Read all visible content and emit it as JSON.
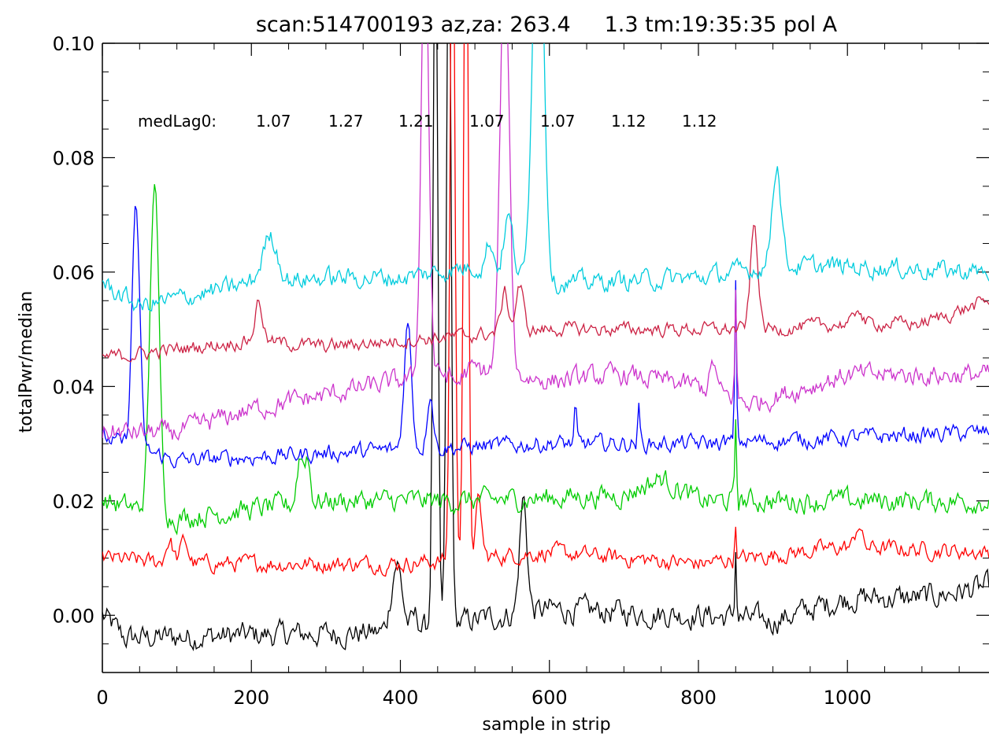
{
  "chart_data": {
    "type": "line",
    "title": "scan:514700193 az,za: 263.4     1.3 tm:19:35:35 pol A",
    "xlabel": "sample in strip",
    "ylabel": "totalPwr/median",
    "xlim": [
      0,
      1190
    ],
    "ylim": [
      -0.01,
      0.1
    ],
    "xticks": [
      0,
      200,
      400,
      600,
      800,
      1000
    ],
    "xtick_labels": [
      "0",
      "200",
      "400",
      "600",
      "800",
      "1000"
    ],
    "yticks": [
      0.0,
      0.02,
      0.04,
      0.06,
      0.08,
      0.1
    ],
    "ytick_labels": [
      "0.00",
      "0.02",
      "0.04",
      "0.06",
      "0.08",
      "0.10"
    ],
    "annotation": {
      "label": "medLag0:",
      "values": [
        "1.07",
        "1.27",
        "1.21",
        "1.07",
        "1.07",
        "1.12",
        "1.12"
      ]
    },
    "grid": false,
    "series": [
      {
        "color": "#000000",
        "offset": 0.0,
        "base": [
          [
            0,
            0.0
          ],
          [
            30,
            -0.004
          ],
          [
            380,
            -0.003
          ],
          [
            600,
            0.001
          ],
          [
            800,
            0.0
          ],
          [
            900,
            -0.001
          ],
          [
            1000,
            0.003
          ],
          [
            1100,
            0.003
          ],
          [
            1190,
            0.005
          ]
        ],
        "noise": 0.0018,
        "features": [
          [
            395,
            0.012,
            7
          ],
          [
            420,
            0.002,
            4
          ],
          [
            447,
            0.13,
            3
          ],
          [
            465,
            0.13,
            3
          ],
          [
            565,
            0.02,
            5
          ],
          [
            850,
            0.012,
            1.2
          ]
        ]
      },
      {
        "color": "#ff0000",
        "offset": 0.01,
        "base": [
          [
            0,
            0.01
          ],
          [
            100,
            0.009
          ],
          [
            400,
            0.009
          ],
          [
            600,
            0.011
          ],
          [
            800,
            0.009
          ],
          [
            1000,
            0.012
          ],
          [
            1190,
            0.011
          ]
        ],
        "noise": 0.0012,
        "features": [
          [
            90,
            0.004,
            5
          ],
          [
            110,
            0.004,
            5
          ],
          [
            470,
            0.13,
            3
          ],
          [
            488,
            0.13,
            3
          ],
          [
            505,
            0.01,
            4
          ],
          [
            850,
            0.006,
            1.2
          ],
          [
            1015,
            0.004,
            4
          ]
        ]
      },
      {
        "color": "#00cc00",
        "offset": 0.02,
        "base": [
          [
            0,
            0.02
          ],
          [
            100,
            0.017
          ],
          [
            300,
            0.02
          ],
          [
            500,
            0.02
          ],
          [
            700,
            0.021
          ],
          [
            750,
            0.024
          ],
          [
            800,
            0.02
          ],
          [
            1190,
            0.02
          ]
        ],
        "noise": 0.0016,
        "features": [
          [
            70,
            0.058,
            6
          ],
          [
            265,
            0.008,
            4
          ],
          [
            275,
            0.008,
            4
          ],
          [
            850,
            0.014,
            1.2
          ]
        ]
      },
      {
        "color": "#0000ff",
        "offset": 0.03,
        "base": [
          [
            0,
            0.031
          ],
          [
            100,
            0.027
          ],
          [
            400,
            0.029
          ],
          [
            600,
            0.03
          ],
          [
            800,
            0.03
          ],
          [
            1190,
            0.032
          ]
        ],
        "noise": 0.0012,
        "features": [
          [
            45,
            0.043,
            5
          ],
          [
            410,
            0.022,
            5
          ],
          [
            440,
            0.01,
            4
          ],
          [
            635,
            0.006,
            1.5
          ],
          [
            720,
            0.006,
            1.5
          ],
          [
            850,
            0.028,
            1.2
          ]
        ]
      },
      {
        "color": "#cc33cc",
        "offset": 0.04,
        "base": [
          [
            0,
            0.032
          ],
          [
            100,
            0.032
          ],
          [
            200,
            0.036
          ],
          [
            400,
            0.041
          ],
          [
            500,
            0.043
          ],
          [
            600,
            0.041
          ],
          [
            700,
            0.042
          ],
          [
            800,
            0.04
          ],
          [
            870,
            0.037
          ],
          [
            1000,
            0.042
          ],
          [
            1190,
            0.042
          ]
        ],
        "noise": 0.0015,
        "features": [
          [
            433,
            0.08,
            5
          ],
          [
            540,
            0.075,
            6
          ],
          [
            475,
            -0.002,
            6
          ],
          [
            820,
            0.005,
            4
          ],
          [
            850,
            0.018,
            1.2
          ]
        ]
      },
      {
        "color": "#cc2244",
        "offset": 0.05,
        "base": [
          [
            0,
            0.045
          ],
          [
            200,
            0.048
          ],
          [
            300,
            0.047
          ],
          [
            500,
            0.049
          ],
          [
            600,
            0.05
          ],
          [
            800,
            0.05
          ],
          [
            900,
            0.05
          ],
          [
            1000,
            0.051
          ],
          [
            1100,
            0.051
          ],
          [
            1190,
            0.055
          ]
        ],
        "noise": 0.001,
        "features": [
          [
            210,
            0.007,
            5
          ],
          [
            540,
            0.007,
            5
          ],
          [
            560,
            0.008,
            5
          ],
          [
            875,
            0.018,
            5
          ],
          [
            1015,
            0.003,
            4
          ]
        ]
      },
      {
        "color": "#00ccdd",
        "offset": 0.06,
        "base": [
          [
            0,
            0.058
          ],
          [
            50,
            0.054
          ],
          [
            200,
            0.058
          ],
          [
            300,
            0.059
          ],
          [
            400,
            0.059
          ],
          [
            500,
            0.061
          ],
          [
            600,
            0.058
          ],
          [
            800,
            0.059
          ],
          [
            900,
            0.061
          ],
          [
            1000,
            0.061
          ],
          [
            1190,
            0.06
          ]
        ],
        "noise": 0.0014,
        "features": [
          [
            225,
            0.008,
            10
          ],
          [
            520,
            0.005,
            5
          ],
          [
            545,
            0.01,
            6
          ],
          [
            585,
            0.08,
            7
          ],
          [
            905,
            0.018,
            6
          ]
        ]
      }
    ]
  }
}
